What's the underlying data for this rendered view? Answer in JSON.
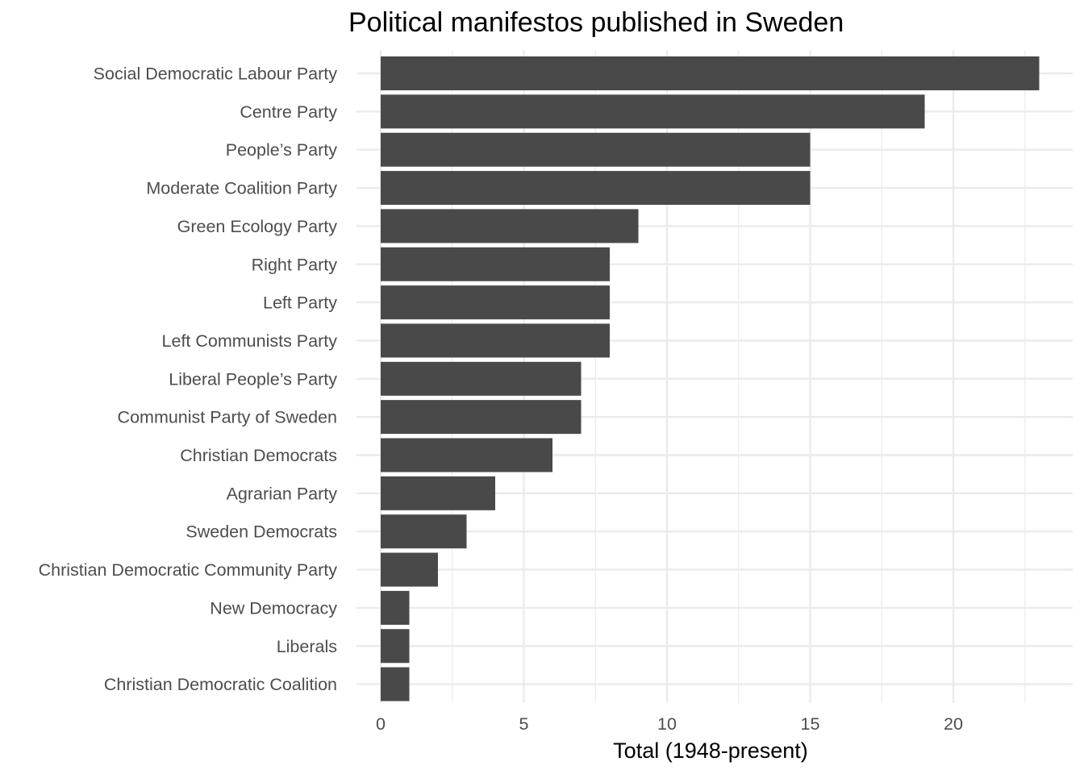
{
  "chart_data": {
    "type": "bar",
    "orientation": "horizontal",
    "title": "Political manifestos published in Sweden",
    "xlabel": "Total (1948-present)",
    "ylabel": "",
    "xlim": [
      0,
      23
    ],
    "x_ticks": [
      0,
      5,
      10,
      15,
      20
    ],
    "grid": true,
    "legend": "none",
    "bar_color": "#494949",
    "grid_color": "#ebebeb",
    "categories": [
      "Social Democratic Labour Party",
      "Centre Party",
      "People’s Party",
      "Moderate Coalition Party",
      "Green Ecology Party",
      "Right Party",
      "Left Party",
      "Left Communists Party",
      "Liberal People’s Party",
      "Communist Party of Sweden",
      "Christian Democrats",
      "Agrarian Party",
      "Sweden Democrats",
      "Christian Democratic Community Party",
      "New Democracy",
      "Liberals",
      "Christian Democratic Coalition"
    ],
    "values": [
      23,
      19,
      15,
      15,
      9,
      8,
      8,
      8,
      7,
      7,
      6,
      4,
      3,
      2,
      1,
      1,
      1
    ]
  }
}
